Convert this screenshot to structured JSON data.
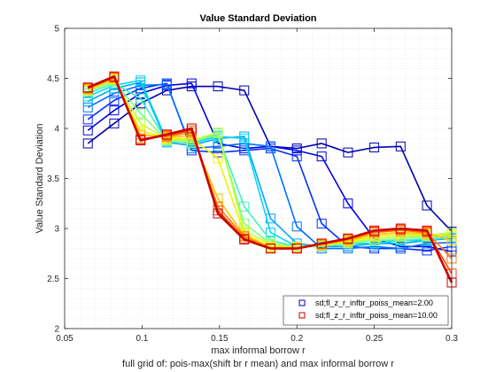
{
  "chart_data": {
    "type": "line",
    "title": "Value Standard Deviation",
    "xlabel": "max informal borrow r",
    "ylabel": "Value Standard Deviation",
    "caption": "full grid of: pois-max(shift br r mean) and max informal borrow r",
    "xlim": [
      0.05,
      0.3
    ],
    "ylim": [
      2,
      5
    ],
    "grid": "minor dotted",
    "legend_position": "bottom-right",
    "x_ticks": [
      "0.05",
      "0.1",
      "0.15",
      "0.2",
      "0.25",
      "0.3"
    ],
    "y_ticks": [
      "2",
      "2.5",
      "3",
      "3.5",
      "4",
      "4.5",
      "5"
    ],
    "x": [
      0.065,
      0.082,
      0.099,
      0.116,
      0.132,
      0.149,
      0.166,
      0.183,
      0.2,
      0.216,
      0.233,
      0.25,
      0.267,
      0.284,
      0.3
    ],
    "series": [
      {
        "name": "sd;fl_z_r_infbr_poiss_mean=2.00",
        "legend": true,
        "color": "#0000b0",
        "values": [
          3.85,
          4.05,
          4.25,
          4.38,
          4.42,
          4.42,
          4.38,
          3.82,
          3.8,
          3.85,
          3.76,
          3.81,
          3.82,
          3.23,
          2.97
        ]
      },
      {
        "color": "#0000e6",
        "values": [
          3.98,
          4.18,
          4.35,
          4.43,
          4.45,
          3.85,
          3.8,
          3.82,
          3.78,
          3.72,
          3.25,
          2.9,
          2.82,
          2.82,
          2.77
        ]
      },
      {
        "color": "#0030ff",
        "values": [
          4.09,
          4.28,
          4.4,
          4.45,
          3.78,
          3.76,
          3.78,
          3.8,
          3.72,
          3.05,
          2.82,
          2.8,
          2.8,
          2.78,
          2.82
        ]
      },
      {
        "color": "#0070ff",
        "values": [
          4.21,
          4.35,
          4.43,
          4.44,
          3.8,
          3.82,
          3.85,
          3.82,
          3.02,
          2.8,
          2.8,
          2.82,
          2.8,
          2.85,
          2.86
        ]
      },
      {
        "color": "#00a8ff",
        "values": [
          4.27,
          4.4,
          4.46,
          3.86,
          3.83,
          3.9,
          3.92,
          3.1,
          2.85,
          2.82,
          2.82,
          2.85,
          2.85,
          2.88,
          2.9
        ]
      },
      {
        "color": "#00d8f0",
        "values": [
          4.32,
          4.43,
          4.48,
          3.88,
          3.85,
          3.92,
          3.9,
          2.96,
          2.82,
          2.82,
          2.85,
          2.85,
          2.88,
          2.88,
          2.91
        ]
      },
      {
        "color": "#40f0c0",
        "values": [
          4.35,
          4.45,
          4.3,
          3.87,
          3.86,
          3.93,
          3.22,
          2.88,
          2.82,
          2.82,
          2.85,
          2.88,
          2.88,
          2.9,
          2.93
        ]
      },
      {
        "color": "#80ff80",
        "values": [
          4.37,
          4.47,
          4.15,
          3.88,
          3.86,
          3.95,
          3.05,
          2.85,
          2.82,
          2.84,
          2.85,
          2.88,
          2.9,
          2.92,
          2.95
        ]
      },
      {
        "color": "#c0ff40",
        "values": [
          4.38,
          4.48,
          4.05,
          3.89,
          3.88,
          3.96,
          2.98,
          2.84,
          2.82,
          2.83,
          2.86,
          2.9,
          2.92,
          2.93,
          2.96
        ]
      },
      {
        "color": "#f0f000",
        "values": [
          4.39,
          4.49,
          3.98,
          3.9,
          3.9,
          3.7,
          2.95,
          2.82,
          2.81,
          2.83,
          2.87,
          2.92,
          2.94,
          2.94,
          2.93
        ]
      },
      {
        "color": "#ffc000",
        "values": [
          4.39,
          4.5,
          3.94,
          3.91,
          3.93,
          3.3,
          2.93,
          2.81,
          2.81,
          2.84,
          2.88,
          2.94,
          2.96,
          2.95,
          2.88
        ]
      },
      {
        "color": "#ff8000",
        "values": [
          4.4,
          4.51,
          3.9,
          3.92,
          3.96,
          3.22,
          2.92,
          2.8,
          2.8,
          2.84,
          2.89,
          2.96,
          2.98,
          2.96,
          2.7
        ]
      },
      {
        "color": "#ff4000",
        "values": [
          4.4,
          4.51,
          3.89,
          3.93,
          3.98,
          3.18,
          2.9,
          2.8,
          2.8,
          2.85,
          2.9,
          2.97,
          2.99,
          2.97,
          2.55
        ]
      },
      {
        "name": "sd;fl_z_r_infbr_poiss_mean=10.00",
        "legend": true,
        "color": "#cc0000",
        "values": [
          4.41,
          4.52,
          3.88,
          3.94,
          4.0,
          3.15,
          2.89,
          2.8,
          2.8,
          2.85,
          2.9,
          2.98,
          3.0,
          2.98,
          2.46
        ]
      }
    ]
  }
}
